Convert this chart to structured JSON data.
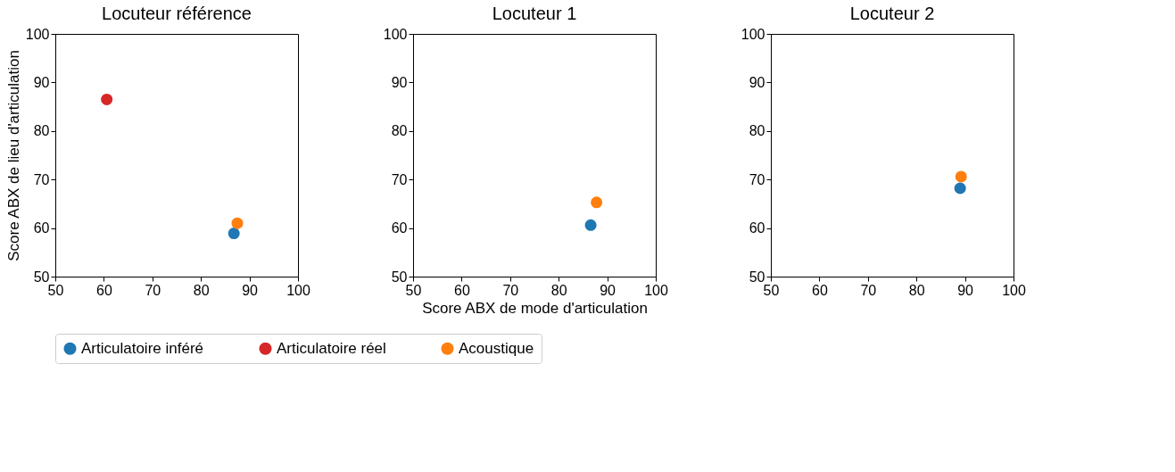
{
  "chart_data": [
    {
      "type": "scatter",
      "title": "Locuteur référence",
      "ylabel": "Score ABX de lieu d'articulation",
      "xlim": [
        50,
        100
      ],
      "ylim": [
        50,
        100
      ],
      "xticks": [
        50,
        60,
        70,
        80,
        90,
        100
      ],
      "yticks": [
        50,
        60,
        70,
        80,
        90,
        100
      ],
      "grid": false,
      "marker": "circle",
      "legend": "bottom",
      "series": [
        {
          "name": "Articulatoire inféré",
          "color": "#1f77b4",
          "x": [
            86.8
          ],
          "values": [
            58.9
          ]
        },
        {
          "name": "Articulatoire réel",
          "color": "#d62728",
          "x": [
            60.6
          ],
          "values": [
            86.5
          ]
        },
        {
          "name": "Acoustique",
          "color": "#ff7f0e",
          "x": [
            87.5
          ],
          "values": [
            61.0
          ]
        }
      ]
    },
    {
      "type": "scatter",
      "title": "Locuteur 1",
      "xlabel": "Score ABX de mode d'articulation",
      "xlim": [
        50,
        100
      ],
      "ylim": [
        50,
        100
      ],
      "xticks": [
        50,
        60,
        70,
        80,
        90,
        100
      ],
      "yticks": [
        50,
        60,
        70,
        80,
        90,
        100
      ],
      "grid": false,
      "marker": "circle",
      "legend": "bottom",
      "series": [
        {
          "name": "Articulatoire inféré",
          "color": "#1f77b4",
          "x": [
            86.6
          ],
          "values": [
            60.6
          ]
        },
        {
          "name": "Acoustique",
          "color": "#ff7f0e",
          "x": [
            87.8
          ],
          "values": [
            65.3
          ]
        }
      ]
    },
    {
      "type": "scatter",
      "title": "Locuteur 2",
      "xlim": [
        50,
        100
      ],
      "ylim": [
        50,
        100
      ],
      "xticks": [
        50,
        60,
        70,
        80,
        90,
        100
      ],
      "yticks": [
        50,
        60,
        70,
        80,
        90,
        100
      ],
      "grid": false,
      "marker": "circle",
      "legend": "bottom",
      "series": [
        {
          "name": "Articulatoire inféré",
          "color": "#1f77b4",
          "x": [
            89.0
          ],
          "values": [
            68.2
          ]
        },
        {
          "name": "Acoustique",
          "color": "#ff7f0e",
          "x": [
            89.2
          ],
          "values": [
            70.6
          ]
        }
      ]
    }
  ]
}
